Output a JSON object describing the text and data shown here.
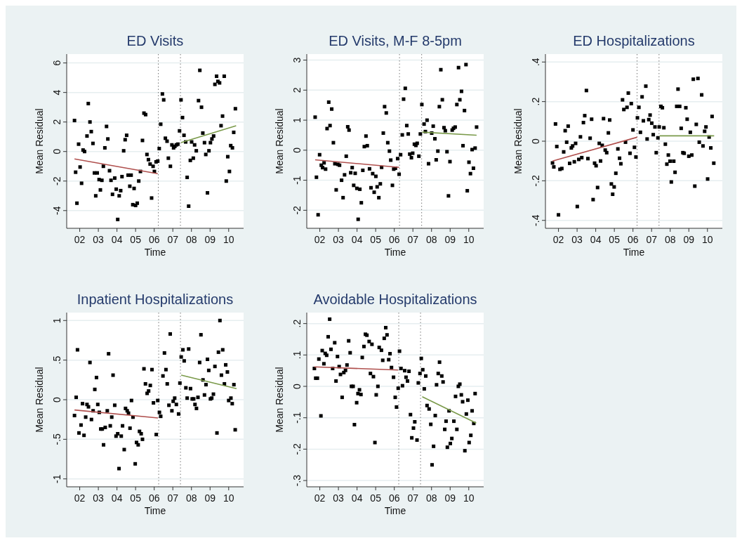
{
  "chart_data": [
    {
      "type": "scatter",
      "title": "ED Visits",
      "xlabel": "Time",
      "ylabel": "Mean Residual",
      "grid": "y",
      "xlim": [
        2001.3,
        2010.8
      ],
      "xticks": [
        {
          "value": 2002,
          "label": "02"
        },
        {
          "value": 2003,
          "label": "03"
        },
        {
          "value": 2004,
          "label": "04"
        },
        {
          "value": 2005,
          "label": "05"
        },
        {
          "value": 2006,
          "label": "06"
        },
        {
          "value": 2007,
          "label": "07"
        },
        {
          "value": 2008,
          "label": "08"
        },
        {
          "value": 2009,
          "label": "09"
        },
        {
          "value": 2010,
          "label": "10"
        }
      ],
      "ylim": [
        -5.2,
        6.6
      ],
      "yticks": [
        -4,
        -2,
        0,
        2,
        4,
        6
      ],
      "ref_lines": [
        {
          "axis": "x",
          "value": 2006.22,
          "color": "#777777",
          "line_style": "dotted"
        },
        {
          "axis": "x",
          "value": 2007.41,
          "color": "#777777",
          "line_style": "dotted"
        }
      ],
      "series": [
        {
          "type": "scatter",
          "marker": "square",
          "color": "#000000",
          "x": [
            2001.72,
            2001.78,
            2001.85,
            2001.94,
            2002.02,
            2002.1,
            2002.18,
            2002.26,
            2002.39,
            2002.46,
            2002.55,
            2002.62,
            2002.71,
            2002.79,
            2002.86,
            2002.94,
            2003.04,
            2003.11,
            2003.19,
            2003.27,
            2003.35,
            2003.44,
            2003.51,
            2003.6,
            2003.68,
            2003.76,
            2003.88,
            2003.96,
            2004.04,
            2004.12,
            2004.2,
            2004.27,
            2004.36,
            2004.44,
            2004.52,
            2004.6,
            2004.69,
            2004.76,
            2004.85,
            2004.92,
            2005.0,
            2005.09,
            2005.17,
            2005.26,
            2005.37,
            2005.45,
            2005.54,
            2005.61,
            2005.69,
            2005.78,
            2005.86,
            2005.94,
            2006.01,
            2006.1,
            2006.19,
            2006.27,
            2006.35,
            2006.44,
            2006.51,
            2006.6,
            2006.69,
            2006.76,
            2006.87,
            2006.95,
            2007.04,
            2007.11,
            2007.19,
            2007.27,
            2007.36,
            2007.44,
            2007.52,
            2007.6,
            2007.69,
            2007.77,
            2007.85,
            2007.94,
            2008.01,
            2008.1,
            2008.17,
            2008.26,
            2008.38,
            2008.45,
            2008.54,
            2008.61,
            2008.7,
            2008.77,
            2008.86,
            2008.94,
            2009.02,
            2009.1,
            2009.19,
            2009.26,
            2009.35,
            2009.42,
            2009.51,
            2009.59,
            2009.67,
            2009.76,
            2009.87,
            2009.95,
            2010.04,
            2010.11,
            2010.2,
            2010.27,
            2010.36
          ],
          "values": [
            2.1,
            -1.4,
            -3.5,
            0.5,
            -1.05,
            -2.15,
            0.1,
            0,
            1.05,
            3.25,
            2.0,
            1.35,
            0.55,
            -1.45,
            -3.0,
            -1.45,
            -1.9,
            -2.6,
            -1.95,
            -1.0,
            0.25,
            1.7,
            0.85,
            -1.3,
            -1.95,
            -2.9,
            -1.8,
            -2.55,
            -4.6,
            -3.0,
            -2.65,
            -1.7,
            0.05,
            0.8,
            1.1,
            -1.6,
            -2.35,
            -1.6,
            -3.6,
            -2.5,
            -3.65,
            -3.5,
            -2.0,
            -1.35,
            0.75,
            2.6,
            2.5,
            -0.2,
            -0.55,
            -0.85,
            -3.15,
            -1.0,
            -1.35,
            -0.7,
            -0.65,
            0.2,
            1.85,
            3.9,
            3.5,
            0.9,
            0.7,
            -0.45,
            -1.0,
            0.45,
            0.25,
            0.35,
            0.45,
            0.5,
            1.4,
            3.5,
            2.3,
            1.1,
            0.65,
            -1.75,
            -3.7,
            -0.6,
            0.65,
            -0.45,
            0.45,
            0.05,
            3.45,
            5.5,
            3.0,
            1.25,
            0.6,
            -0.2,
            -2.8,
            0.05,
            0.6,
            0.85,
            1.05,
            4.55,
            5.1,
            4.75,
            4.65,
            1.75,
            2.4,
            5.1,
            -2.0,
            -0.35,
            -1.35,
            0.4,
            0.25,
            1.3,
            2.9
          ]
        },
        {
          "type": "line",
          "color": "#b0504e",
          "x": [
            2001.72,
            2006.19
          ],
          "values": [
            -0.5,
            -1.5
          ]
        },
        {
          "type": "line",
          "color": "#7a9a4a",
          "x": [
            2007.44,
            2010.4
          ],
          "values": [
            0.6,
            1.75
          ]
        }
      ]
    },
    {
      "type": "scatter",
      "title": "ED Visits, M-F 8-5pm",
      "xlabel": "Time",
      "ylabel": "Mean Residual",
      "grid": "y",
      "xlim": [
        2001.3,
        2010.8
      ],
      "xticks": [
        {
          "value": 2002,
          "label": "02"
        },
        {
          "value": 2003,
          "label": "03"
        },
        {
          "value": 2004,
          "label": "04"
        },
        {
          "value": 2005,
          "label": "05"
        },
        {
          "value": 2006,
          "label": "06"
        },
        {
          "value": 2007,
          "label": "07"
        },
        {
          "value": 2008,
          "label": "08"
        },
        {
          "value": 2009,
          "label": "09"
        },
        {
          "value": 2010,
          "label": "10"
        }
      ],
      "ylim": [
        -2.6,
        3.2
      ],
      "yticks": [
        -2,
        -1,
        0,
        1,
        2,
        3
      ],
      "ref_lines": [
        {
          "axis": "x",
          "value": 2006.28,
          "color": "#777777",
          "line_style": "dotted"
        },
        {
          "axis": "x",
          "value": 2007.47,
          "color": "#777777",
          "line_style": "dotted"
        }
      ],
      "series": [
        {
          "type": "scatter",
          "marker": "square",
          "color": "#000000",
          "x": [
            2001.75,
            2001.82,
            2001.91,
            2001.99,
            2002.08,
            2002.15,
            2002.23,
            2002.31,
            2002.39,
            2002.48,
            2002.55,
            2002.64,
            2002.73,
            2002.81,
            2002.88,
            2002.97,
            2003.06,
            2003.17,
            2003.25,
            2003.33,
            2003.42,
            2003.5,
            2003.57,
            2003.66,
            2003.74,
            2003.82,
            2003.9,
            2003.99,
            2004.06,
            2004.15,
            2004.23,
            2004.31,
            2004.39,
            2004.48,
            2004.55,
            2004.67,
            2004.75,
            2004.84,
            2004.92,
            2005.01,
            2005.08,
            2005.17,
            2005.25,
            2005.32,
            2005.41,
            2005.48,
            2005.57,
            2005.65,
            2005.74,
            2005.81,
            2005.9,
            2005.97,
            2006.06,
            2006.18,
            2006.26,
            2006.34,
            2006.43,
            2006.5,
            2006.59,
            2006.67,
            2006.75,
            2006.83,
            2006.92,
            2006.99,
            2007.08,
            2007.16,
            2007.23,
            2007.32,
            2007.4,
            2007.48,
            2007.6,
            2007.67,
            2007.76,
            2007.84,
            2008.01,
            2008.09,
            2008.18,
            2008.25,
            2008.34,
            2008.42,
            2008.5,
            2008.58,
            2008.67,
            2008.74,
            2008.83,
            2008.91,
            2008.99,
            2009.11,
            2009.18,
            2009.27,
            2009.36,
            2009.45,
            2009.52,
            2009.61,
            2009.69,
            2009.77,
            2009.85,
            2009.92,
            2010.01,
            2010.09,
            2010.18,
            2010.25,
            2010.34,
            2010.42
          ],
          "values": [
            1.1,
            -0.9,
            -2.15,
            -0.15,
            -0.5,
            -0.58,
            -0.42,
            -0.63,
            0.72,
            1.6,
            0.82,
            1.37,
            0.25,
            -0.45,
            -1.32,
            -0.47,
            -0.5,
            -1.0,
            -1.58,
            -0.82,
            -0.2,
            0.78,
            0.67,
            -0.75,
            -0.58,
            -1.17,
            -0.77,
            -1.27,
            -2.3,
            -1.3,
            -1.75,
            -0.67,
            0.12,
            0.47,
            0.15,
            -0.62,
            -1.25,
            -0.78,
            -1.4,
            -0.87,
            -1.22,
            -1.58,
            -1.12,
            -0.57,
            0.57,
            1.45,
            1.24,
            0.25,
            -0.03,
            -0.33,
            -1.17,
            -0.63,
            -0.6,
            -0.28,
            -0.8,
            -0.15,
            0.51,
            1.7,
            2.06,
            0.82,
            0.54,
            -0.13,
            -0.25,
            -0.1,
            0.2,
            0.16,
            0.23,
            -0.2,
            0.54,
            1.52,
            0.87,
            0.62,
            1.0,
            -0.45,
            0.57,
            0.8,
            0.38,
            -0.32,
            -0.03,
            1.45,
            2.68,
            1.68,
            0.75,
            0.65,
            -0.05,
            -1.52,
            -0.38,
            0.67,
            0.73,
            0.77,
            1.52,
            2.75,
            1.68,
            1.96,
            0.15,
            1.32,
            2.85,
            -1.35,
            -0.4,
            -0.78,
            0.02,
            -0.6,
            0.07,
            0.77
          ]
        },
        {
          "type": "line",
          "color": "#b0504e",
          "x": [
            2001.75,
            2006.26
          ],
          "values": [
            -0.32,
            -0.57
          ]
        },
        {
          "type": "line",
          "color": "#7a9a4a",
          "x": [
            2007.5,
            2010.42
          ],
          "values": [
            0.6,
            0.5
          ]
        }
      ]
    },
    {
      "type": "scatter",
      "title": "ED Hospitalizations",
      "xlabel": "Time",
      "ylabel": "Mean Residual",
      "grid": "y",
      "xlim": [
        2001.3,
        2010.8
      ],
      "xticks": [
        {
          "value": 2002,
          "label": "02"
        },
        {
          "value": 2003,
          "label": "03"
        },
        {
          "value": 2004,
          "label": "04"
        },
        {
          "value": 2005,
          "label": "05"
        },
        {
          "value": 2006,
          "label": "06"
        },
        {
          "value": 2007,
          "label": "07"
        },
        {
          "value": 2008,
          "label": "08"
        },
        {
          "value": 2009,
          "label": "09"
        },
        {
          "value": 2010,
          "label": "10"
        }
      ],
      "ylim": [
        -0.44,
        0.44
      ],
      "yticks": [
        {
          "value": -0.4,
          "label": "-.4"
        },
        {
          "value": -0.2,
          "label": "-.2"
        },
        0,
        {
          "value": 0.2,
          "label": ".2"
        },
        {
          "value": 0.4,
          "label": ".4"
        }
      ],
      "ref_lines": [
        {
          "axis": "x",
          "value": 2006.22,
          "color": "#777777",
          "line_style": "dotted"
        },
        {
          "axis": "x",
          "value": 2007.4,
          "color": "#777777",
          "line_style": "dotted"
        }
      ],
      "series": [
        {
          "type": "scatter",
          "marker": "square",
          "color": "#000000",
          "x": [
            2001.68,
            2001.75,
            2001.84,
            2001.91,
            2002.0,
            2002.08,
            2002.18,
            2002.28,
            2002.36,
            2002.44,
            2002.52,
            2002.6,
            2002.69,
            2002.76,
            2002.85,
            2002.92,
            2003.01,
            2003.09,
            2003.18,
            2003.25,
            2003.34,
            2003.41,
            2003.5,
            2003.58,
            2003.7,
            2003.78,
            2003.86,
            2003.94,
            2004.02,
            2004.1,
            2004.19,
            2004.26,
            2004.35,
            2004.42,
            2004.51,
            2004.59,
            2004.68,
            2004.75,
            2004.84,
            2004.91,
            2004.99,
            2005.08,
            2005.19,
            2005.28,
            2005.35,
            2005.44,
            2005.51,
            2005.6,
            2005.68,
            2005.75,
            2005.84,
            2005.91,
            2006.0,
            2006.08,
            2006.16,
            2006.24,
            2006.32,
            2006.4,
            2006.49,
            2006.56,
            2006.69,
            2006.76,
            2006.85,
            2006.92,
            2007.01,
            2007.09,
            2007.18,
            2007.25,
            2007.34,
            2007.41,
            2007.5,
            2007.58,
            2007.66,
            2007.74,
            2007.82,
            2007.9,
            2007.99,
            2008.06,
            2008.19,
            2008.26,
            2008.35,
            2008.42,
            2008.51,
            2008.59,
            2008.68,
            2008.75,
            2008.84,
            2008.91,
            2009.0,
            2009.08,
            2009.16,
            2009.24,
            2009.32,
            2009.4,
            2009.49,
            2009.56,
            2009.69,
            2009.76,
            2009.85,
            2009.92,
            2010.01,
            2010.09,
            2010.18,
            2010.25,
            2010.34
          ],
          "values": [
            -0.11,
            -0.13,
            0.087,
            -0.027,
            -0.372,
            -0.142,
            -0.138,
            -0.054,
            0.053,
            -0.005,
            0.076,
            -0.112,
            -0.034,
            -0.024,
            -0.104,
            -0.011,
            -0.33,
            -0.092,
            0.022,
            -0.083,
            0.094,
            0.129,
            0.256,
            -0.088,
            0.015,
            0.111,
            -0.295,
            -0.111,
            -0.124,
            -0.234,
            -0.011,
            -0.1,
            -0.021,
            0.114,
            -0.045,
            -0.058,
            0.042,
            0.107,
            -0.216,
            -0.268,
            -0.231,
            -0.162,
            -0.039,
            -0.086,
            -0.114,
            0.209,
            0.16,
            -0.005,
            0.171,
            0.243,
            -0.061,
            0.19,
            0.057,
            -0.031,
            -0.08,
            0.118,
            0.171,
            0.045,
            0.224,
            0.103,
            0.278,
            0.011,
            0.109,
            0.132,
            0.091,
            0.033,
            0.072,
            -0.058,
            0.017,
            0.072,
            0.176,
            0.169,
            0.068,
            -0.015,
            -0.116,
            -0.07,
            -0.101,
            -0.206,
            -0.101,
            -0.157,
            0.176,
            0.263,
            0.176,
            0.065,
            -0.058,
            -0.061,
            0.169,
            0.111,
            -0.076,
            0.045,
            -0.07,
            0.313,
            -0.227,
            0.085,
            0.317,
            -0.005,
            0.234,
            -0.024,
            0.05,
            0.072,
            -0.191,
            0.021,
            -0.034,
            0.125,
            -0.111
          ]
        },
        {
          "type": "line",
          "color": "#b0504e",
          "x": [
            2001.68,
            2006.22
          ],
          "values": [
            -0.1,
            0.02
          ]
        },
        {
          "type": "line",
          "color": "#7a9a4a",
          "x": [
            2007.43,
            2010.36
          ],
          "values": [
            0.027,
            0.027
          ]
        }
      ]
    },
    {
      "type": "scatter",
      "title": "Inpatient Hospitalizations",
      "xlabel": "Time",
      "ylabel": "Mean Residual",
      "grid": "y",
      "xlim": [
        2001.3,
        2010.8
      ],
      "xticks": [
        {
          "value": 2002,
          "label": "02"
        },
        {
          "value": 2003,
          "label": "03"
        },
        {
          "value": 2004,
          "label": "04"
        },
        {
          "value": 2005,
          "label": "05"
        },
        {
          "value": 2006,
          "label": "06"
        },
        {
          "value": 2007,
          "label": "07"
        },
        {
          "value": 2008,
          "label": "08"
        },
        {
          "value": 2009,
          "label": "09"
        },
        {
          "value": 2010,
          "label": "10"
        }
      ],
      "ylim": [
        -1.1,
        1.1
      ],
      "yticks": [
        -1,
        {
          "value": -0.5,
          "label": "-.5"
        },
        0,
        {
          "value": 0.5,
          "label": ".5"
        },
        1
      ],
      "ref_lines": [
        {
          "axis": "x",
          "value": 2006.24,
          "color": "#777777",
          "line_style": "dotted"
        },
        {
          "axis": "x",
          "value": 2007.41,
          "color": "#777777",
          "line_style": "dotted"
        }
      ],
      "series": [
        {
          "type": "scatter",
          "marker": "square",
          "color": "#000000",
          "x": [
            2001.72,
            2001.81,
            2001.88,
            2001.96,
            2002.07,
            2002.15,
            2002.23,
            2002.32,
            2002.39,
            2002.47,
            2002.55,
            2002.63,
            2002.72,
            2002.81,
            2002.9,
            2002.97,
            2003.05,
            2003.13,
            2003.21,
            2003.28,
            2003.37,
            2003.48,
            2003.55,
            2003.64,
            2003.72,
            2003.79,
            2003.88,
            2003.95,
            2004.04,
            2004.11,
            2004.23,
            2004.3,
            2004.39,
            2004.46,
            2004.55,
            2004.62,
            2004.7,
            2004.78,
            2004.86,
            2004.98,
            2005.05,
            2005.14,
            2005.21,
            2005.3,
            2005.37,
            2005.45,
            2005.53,
            2005.62,
            2005.7,
            2005.79,
            2005.88,
            2005.96,
            2006.11,
            2006.19,
            2006.28,
            2006.35,
            2006.47,
            2006.55,
            2006.63,
            2006.7,
            2006.79,
            2006.86,
            2006.95,
            2007.02,
            2007.1,
            2007.19,
            2007.31,
            2007.38,
            2007.45,
            2007.54,
            2007.61,
            2007.7,
            2007.77,
            2007.85,
            2007.95,
            2008.04,
            2008.12,
            2008.19,
            2008.27,
            2008.35,
            2008.44,
            2008.51,
            2008.62,
            2008.7,
            2008.78,
            2008.86,
            2008.93,
            2009.02,
            2009.09,
            2009.18,
            2009.26,
            2009.37,
            2009.45,
            2009.53,
            2009.61,
            2009.68,
            2009.77,
            2009.84,
            2009.93,
            2010.0,
            2010.12,
            2010.19,
            2010.28,
            2010.35
          ],
          "values": [
            -0.2,
            0.03,
            0.63,
            -0.42,
            -0.32,
            -0.05,
            -0.45,
            -0.22,
            -0.06,
            -0.09,
            0.47,
            -0.25,
            -0.14,
            0.13,
            0.28,
            -0.06,
            -0.16,
            -0.37,
            -0.37,
            -0.57,
            -0.35,
            -0.14,
            0.58,
            -0.33,
            -0.22,
            0.31,
            -0.07,
            -0.46,
            -0.43,
            -0.87,
            -0.46,
            -0.33,
            -0.63,
            -0.11,
            -0.14,
            -0.17,
            -0.36,
            -0.01,
            -0.22,
            -0.81,
            -0.54,
            -0.57,
            -0.4,
            -0.43,
            -0.5,
            0.39,
            0.2,
            0.08,
            0.11,
            0.18,
            0.38,
            -0.04,
            -0.44,
            -0.01,
            -0.16,
            -0.21,
            0.3,
            0.59,
            0.38,
            0.2,
            -0.07,
            0.83,
            -0.14,
            -0.02,
            0.02,
            -0.06,
            -0.18,
            0.21,
            0.54,
            0.63,
            0.49,
            0.15,
            0.02,
            0.64,
            0.14,
            0.01,
            0.01,
            -0.06,
            -0.11,
            0.03,
            0.47,
            0.82,
            0.25,
            0.06,
            0.19,
            0.51,
            0.37,
            0.01,
            0.02,
            0.07,
            0.42,
            -0.42,
            0.6,
            1.0,
            0.31,
            0.63,
            0.2,
            0.44,
            0.35,
            -0.01,
            0.02,
            -0.05,
            0.19,
            -0.38
          ]
        },
        {
          "type": "line",
          "color": "#b0504e",
          "x": [
            2001.72,
            2006.2
          ],
          "values": [
            -0.13,
            -0.23
          ]
        },
        {
          "type": "line",
          "color": "#7a9a4a",
          "x": [
            2007.45,
            2010.42
          ],
          "values": [
            0.31,
            0.14
          ]
        }
      ]
    },
    {
      "type": "scatter",
      "title": "Avoidable Hospitalizations",
      "xlabel": "Time",
      "ylabel": "Mean Residual",
      "grid": "y",
      "xlim": [
        2001.3,
        2010.8
      ],
      "xticks": [
        {
          "value": 2002,
          "label": "02"
        },
        {
          "value": 2003,
          "label": "03"
        },
        {
          "value": 2004,
          "label": "04"
        },
        {
          "value": 2005,
          "label": "05"
        },
        {
          "value": 2006,
          "label": "06"
        },
        {
          "value": 2007,
          "label": "07"
        },
        {
          "value": 2008,
          "label": "08"
        },
        {
          "value": 2009,
          "label": "09"
        },
        {
          "value": 2010,
          "label": "10"
        }
      ],
      "ylim": [
        -0.32,
        0.235
      ],
      "yticks": [
        {
          "value": -0.3,
          "label": "-.3"
        },
        {
          "value": -0.2,
          "label": "-.2"
        },
        {
          "value": -0.1,
          "label": "-.1"
        },
        0,
        {
          "value": 0.1,
          "label": ".1"
        },
        {
          "value": 0.2,
          "label": ".2"
        }
      ],
      "ref_lines": [
        {
          "axis": "x",
          "value": 2006.24,
          "color": "#777777",
          "line_style": "dotted"
        },
        {
          "axis": "x",
          "value": 2007.41,
          "color": "#777777",
          "line_style": "dotted"
        }
      ],
      "series": [
        {
          "type": "scatter",
          "marker": "square",
          "color": "#000000",
          "x": [
            2001.71,
            2001.78,
            2001.87,
            2001.95,
            2002.06,
            2002.13,
            2002.22,
            2002.29,
            2002.37,
            2002.45,
            2002.53,
            2002.6,
            2002.69,
            2002.8,
            2002.87,
            2002.95,
            2003.04,
            2003.11,
            2003.2,
            2003.29,
            2003.38,
            2003.46,
            2003.55,
            2003.63,
            2003.7,
            2003.79,
            2003.86,
            2003.98,
            2004.05,
            2004.13,
            2004.21,
            2004.28,
            2004.37,
            2004.45,
            2004.53,
            2004.65,
            2004.72,
            2004.8,
            2004.88,
            2004.96,
            2005.03,
            2005.12,
            2005.19,
            2005.31,
            2005.38,
            2005.46,
            2005.54,
            2005.61,
            2005.7,
            2005.77,
            2005.85,
            2005.96,
            2006.05,
            2006.12,
            2006.21,
            2006.28,
            2006.36,
            2006.44,
            2006.56,
            2006.63,
            2006.71,
            2006.79,
            2006.87,
            2006.94,
            2007.03,
            2007.1,
            2007.22,
            2007.29,
            2007.38,
            2007.45,
            2007.53,
            2007.61,
            2007.69,
            2007.76,
            2007.87,
            2007.96,
            2008.03,
            2008.11,
            2008.2,
            2008.27,
            2008.36,
            2008.43,
            2008.55,
            2008.62,
            2008.71,
            2008.78,
            2008.85,
            2008.94,
            2009.01,
            2009.09,
            2009.2,
            2009.29,
            2009.36,
            2009.44,
            2009.52,
            2009.6,
            2009.67,
            2009.79,
            2009.87,
            2009.95,
            2010.02,
            2010.11,
            2010.18,
            2010.27,
            2010.34
          ],
          "values": [
            0.057,
            0.026,
            0.026,
            0.087,
            -0.094,
            0.114,
            0.072,
            0.105,
            0.099,
            0.158,
            0.214,
            0.118,
            0.057,
            0.139,
            0.017,
            0.095,
            0.063,
            0.038,
            -0.035,
            0.044,
            0.051,
            0.068,
            0.145,
            0.107,
            0.0,
            0.0,
            -0.122,
            -0.052,
            -0.023,
            -0.011,
            -0.026,
            0.092,
            0.127,
            0.166,
            0.163,
            0.143,
            0.041,
            0.134,
            0.031,
            -0.179,
            -0.027,
            0.0,
            0.124,
            0.115,
            0.083,
            0.153,
            0.187,
            0.164,
            0.085,
            0.104,
            0.06,
            0.029,
            -0.035,
            -0.066,
            -0.006,
            0.112,
            0.057,
            0.002,
            0.05,
            0.029,
            0.017,
            0.048,
            -0.09,
            -0.164,
            -0.133,
            -0.113,
            -0.171,
            0.011,
            0.041,
            0.089,
            0.053,
            -0.008,
            0.033,
            -0.061,
            -0.072,
            -0.121,
            -0.25,
            -0.191,
            -0.093,
            0.005,
            0.041,
            0.077,
            0.033,
            0.014,
            -0.137,
            -0.111,
            -0.194,
            -0.078,
            -0.182,
            -0.166,
            -0.111,
            -0.032,
            -0.137,
            0.0,
            0.007,
            -0.027,
            -0.049,
            -0.205,
            -0.088,
            -0.044,
            -0.179,
            -0.156,
            -0.078,
            -0.118,
            -0.023
          ]
        },
        {
          "type": "line",
          "color": "#b0504e",
          "x": [
            2001.71,
            2006.2
          ],
          "values": [
            0.062,
            0.052
          ]
        },
        {
          "type": "line",
          "color": "#7a9a4a",
          "x": [
            2007.5,
            2010.4
          ],
          "values": [
            -0.033,
            -0.117
          ]
        }
      ]
    }
  ]
}
